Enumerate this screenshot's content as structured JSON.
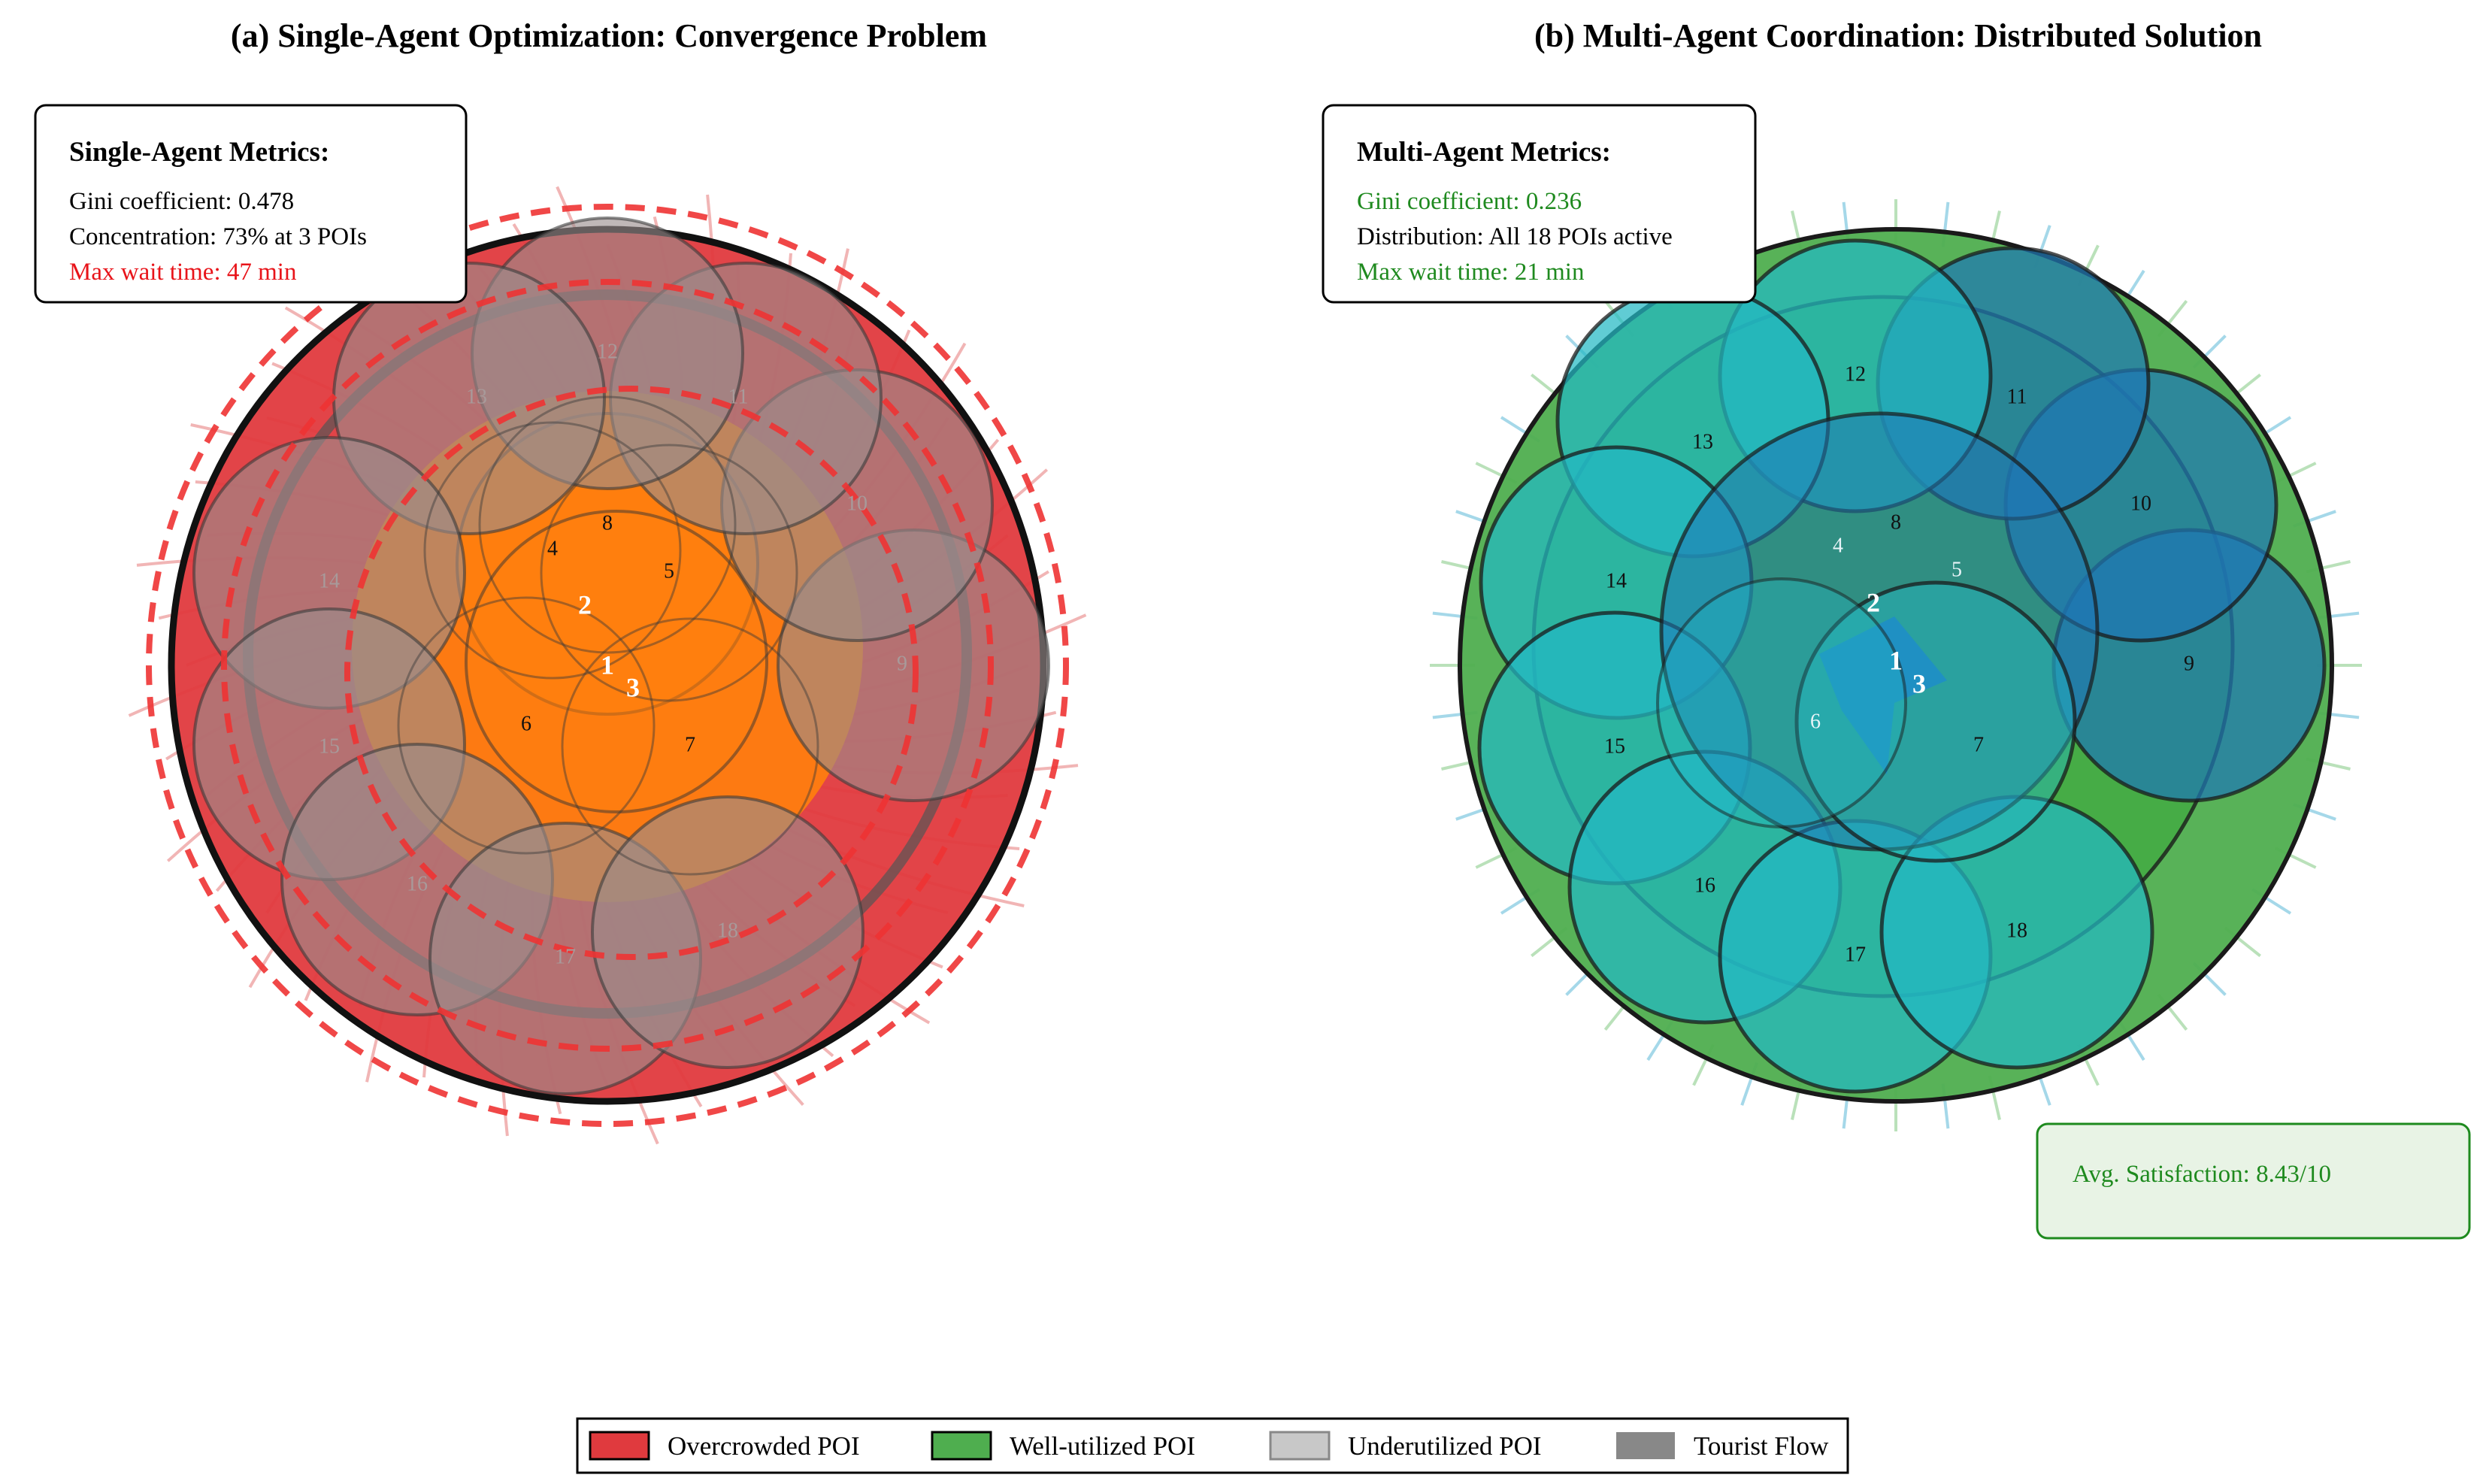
{
  "panels": {
    "left": {
      "title": "(a) Single-Agent Optimization: Convergence Problem",
      "metrics": {
        "heading": "Single-Agent Metrics:",
        "lines": [
          {
            "text": "Gini coefficient: 0.478",
            "color": "#000000"
          },
          {
            "text": "Concentration: 73% at 3 POIs",
            "color": "#000000"
          },
          {
            "text": "Max wait time: 47 min",
            "color": "#e8141a"
          }
        ]
      }
    },
    "right": {
      "title": "(b) Multi-Agent Coordination: Distributed Solution",
      "metrics": {
        "heading": "Multi-Agent Metrics:",
        "lines": [
          {
            "text": "Gini coefficient: 0.236",
            "color": "#1f8a1f"
          },
          {
            "text": "Distribution: All 18 POIs active",
            "color": "#000000"
          },
          {
            "text": "Max wait time: 21 min",
            "color": "#1f8a1f"
          }
        ]
      },
      "satisfaction": "Avg. Satisfaction: 8.43/10"
    }
  },
  "pois": {
    "labels": [
      "1",
      "2",
      "3",
      "4",
      "5",
      "6",
      "7",
      "8",
      "9",
      "10",
      "11",
      "12",
      "13",
      "14",
      "15",
      "16",
      "17",
      "18"
    ]
  },
  "colors": {
    "overcrowded": "#e03a3e",
    "well_utilized": "#4fae4f",
    "underutilized": "#c8c8c8",
    "flow": "#888888",
    "single_core": "#ff7f0e",
    "multi_inner": "#1f77b4",
    "multi_outer": "#23b8c4"
  },
  "legend": [
    {
      "label": "Overcrowded POI",
      "swatch": "#e03a3e",
      "edge": "#000000"
    },
    {
      "label": "Well-utilized POI",
      "swatch": "#4fae4f",
      "edge": "#000000"
    },
    {
      "label": "Underutilized POI",
      "swatch": "#c8c8c8",
      "edge": "#888888"
    },
    {
      "label": "Tourist Flow",
      "swatch": "#888888",
      "edge": "none"
    }
  ]
}
